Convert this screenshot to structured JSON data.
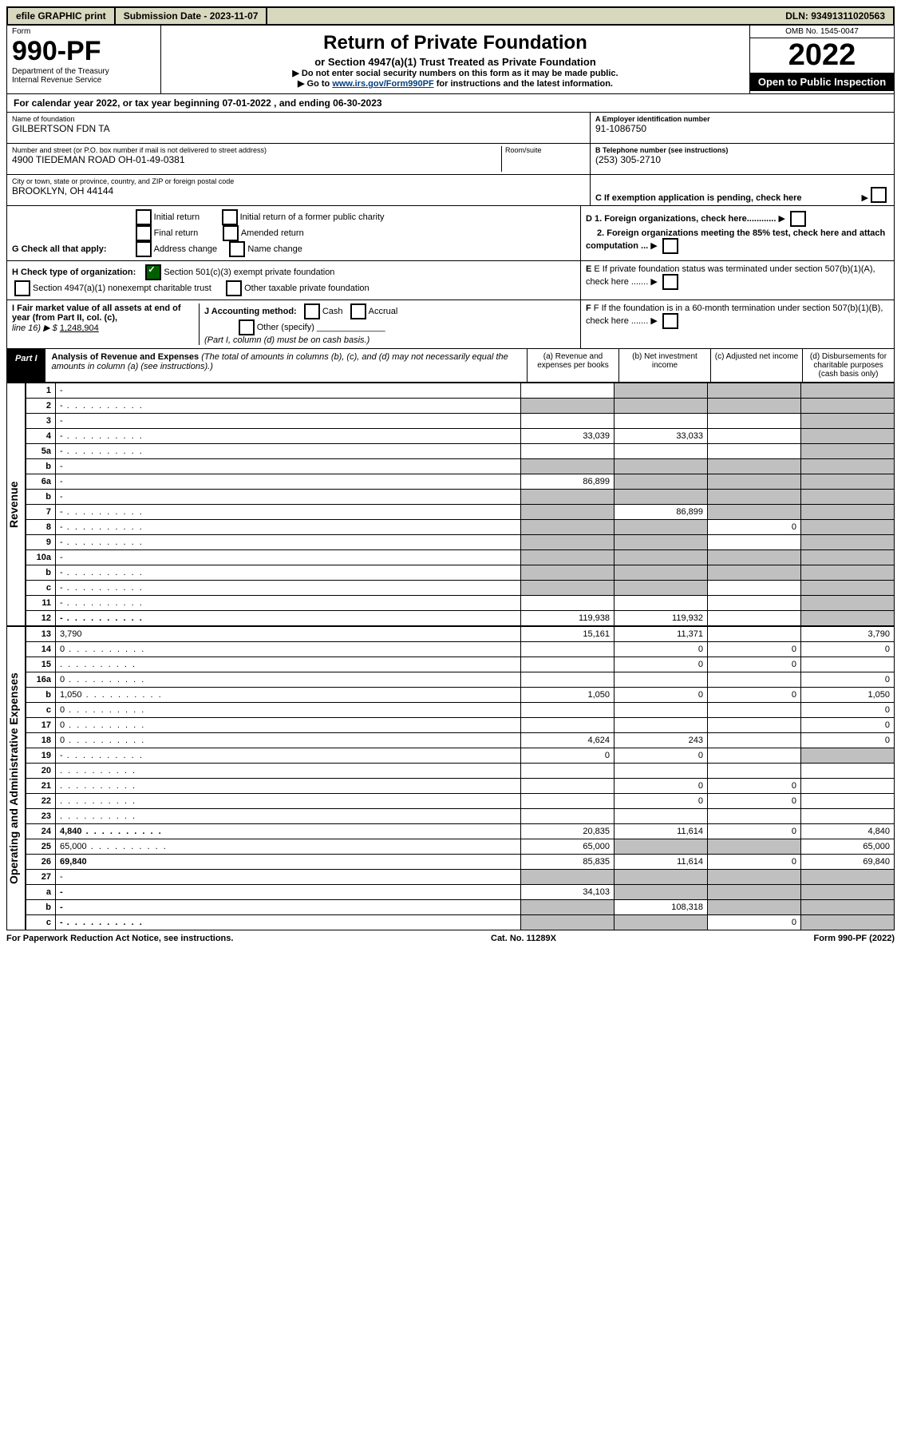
{
  "top": {
    "efile": "efile GRAPHIC print",
    "submission": "Submission Date - 2023-11-07",
    "dln": "DLN: 93491311020563"
  },
  "header": {
    "form_word": "Form",
    "form_no": "990-PF",
    "dept": "Department of the Treasury\nInternal Revenue Service",
    "title": "Return of Private Foundation",
    "subtitle": "or Section 4947(a)(1) Trust Treated as Private Foundation",
    "instruct1": "▶ Do not enter social security numbers on this form as it may be made public.",
    "instruct2_pre": "▶ Go to ",
    "instruct2_link": "www.irs.gov/Form990PF",
    "instruct2_post": " for instructions and the latest information.",
    "omb": "OMB No. 1545-0047",
    "year": "2022",
    "open": "Open to Public Inspection"
  },
  "calyear": "For calendar year 2022, or tax year beginning 07-01-2022         , and ending 06-30-2023",
  "info": {
    "name_label": "Name of foundation",
    "name": "GILBERTSON FDN TA",
    "addr_label": "Number and street (or P.O. box number if mail is not delivered to street address)",
    "addr": "4900 TIEDEMAN ROAD OH-01-49-0381",
    "room_label": "Room/suite",
    "city_label": "City or town, state or province, country, and ZIP or foreign postal code",
    "city": "BROOKLYN, OH  44144",
    "a_label": "A Employer identification number",
    "a_val": "91-1086750",
    "b_label": "B Telephone number (see instructions)",
    "b_val": "(253) 305-2710",
    "c_label": "C If exemption application is pending, check here"
  },
  "g": {
    "prefix": "G Check all that apply:",
    "opts": [
      "Initial return",
      "Final return",
      "Address change",
      "Initial return of a former public charity",
      "Amended return",
      "Name change"
    ],
    "d1": "D 1. Foreign organizations, check here............",
    "d2": "2. Foreign organizations meeting the 85% test, check here and attach computation ..."
  },
  "h": {
    "prefix": "H Check type of organization:",
    "opt1": "Section 501(c)(3) exempt private foundation",
    "opt2": "Section 4947(a)(1) nonexempt charitable trust",
    "opt3": "Other taxable private foundation",
    "e": "E If private foundation status was terminated under section 507(b)(1)(A), check here ......."
  },
  "i": {
    "fmv_label": "I Fair market value of all assets at end of year (from Part II, col. (c),",
    "fmv_line": "line 16) ▶ $",
    "fmv_val": "1,248,904",
    "j": "J Accounting method:",
    "j_cash": "Cash",
    "j_accrual": "Accrual",
    "j_other": "Other (specify)",
    "j_note": "(Part I, column (d) must be on cash basis.)",
    "f": "F If the foundation is in a 60-month termination under section 507(b)(1)(B), check here ......."
  },
  "part1": {
    "tag": "Part I",
    "title": "Analysis of Revenue and Expenses",
    "note": "(The total of amounts in columns (b), (c), and (d) may not necessarily equal the amounts in column (a) (see instructions).)",
    "cols": {
      "a": "(a) Revenue and expenses per books",
      "b": "(b) Net investment income",
      "c": "(c) Adjusted net income",
      "d": "(d) Disbursements for charitable purposes (cash basis only)"
    }
  },
  "side": {
    "rev": "Revenue",
    "exp": "Operating and Administrative Expenses"
  },
  "rows": [
    {
      "n": "1",
      "d": "-",
      "a": "",
      "b": "-",
      "c": "-"
    },
    {
      "n": "2",
      "d": "-",
      "a": "-",
      "b": "-",
      "c": "-",
      "dots": true
    },
    {
      "n": "3",
      "d": "-",
      "a": "",
      "b": "",
      "c": ""
    },
    {
      "n": "4",
      "d": "-",
      "a": "33,039",
      "b": "33,033",
      "c": "",
      "dots": true
    },
    {
      "n": "5a",
      "d": "-",
      "a": "",
      "b": "",
      "c": "",
      "dots": true
    },
    {
      "n": "b",
      "d": "-",
      "a": "-",
      "b": "-",
      "c": "-",
      "inset": true
    },
    {
      "n": "6a",
      "d": "-",
      "a": "86,899",
      "b": "-",
      "c": "-"
    },
    {
      "n": "b",
      "d": "-",
      "a": "-",
      "b": "-",
      "c": "-"
    },
    {
      "n": "7",
      "d": "-",
      "a": "-",
      "b": "86,899",
      "c": "-",
      "dots": true
    },
    {
      "n": "8",
      "d": "-",
      "a": "-",
      "b": "-",
      "c": "0",
      "dots": true
    },
    {
      "n": "9",
      "d": "-",
      "a": "-",
      "b": "-",
      "c": "",
      "dots": true
    },
    {
      "n": "10a",
      "d": "-",
      "a": "-",
      "b": "-",
      "c": "-",
      "inset": true
    },
    {
      "n": "b",
      "d": "-",
      "a": "-",
      "b": "-",
      "c": "-",
      "inset": true,
      "dots": true
    },
    {
      "n": "c",
      "d": "-",
      "a": "-",
      "b": "-",
      "c": "",
      "dots": true
    },
    {
      "n": "11",
      "d": "-",
      "a": "",
      "b": "",
      "c": "",
      "dots": true
    },
    {
      "n": "12",
      "d": "-",
      "a": "119,938",
      "b": "119,932",
      "c": "",
      "bold": true,
      "dots": true
    },
    {
      "n": "13",
      "d": "3,790",
      "a": "15,161",
      "b": "11,371",
      "c": ""
    },
    {
      "n": "14",
      "d": "0",
      "a": "",
      "b": "0",
      "c": "0",
      "dots": true
    },
    {
      "n": "15",
      "d": "",
      "a": "",
      "b": "0",
      "c": "0",
      "dots": true
    },
    {
      "n": "16a",
      "d": "0",
      "a": "",
      "b": "",
      "c": "",
      "dots": true
    },
    {
      "n": "b",
      "d": "1,050",
      "a": "1,050",
      "b": "0",
      "c": "0",
      "dots": true
    },
    {
      "n": "c",
      "d": "0",
      "a": "",
      "b": "",
      "c": "",
      "dots": true
    },
    {
      "n": "17",
      "d": "0",
      "a": "",
      "b": "",
      "c": "",
      "dots": true
    },
    {
      "n": "18",
      "d": "0",
      "a": "4,624",
      "b": "243",
      "c": "",
      "dots": true
    },
    {
      "n": "19",
      "d": "-",
      "a": "0",
      "b": "0",
      "c": "",
      "dots": true
    },
    {
      "n": "20",
      "d": "",
      "a": "",
      "b": "",
      "c": "",
      "dots": true
    },
    {
      "n": "21",
      "d": "",
      "a": "",
      "b": "0",
      "c": "0",
      "dots": true
    },
    {
      "n": "22",
      "d": "",
      "a": "",
      "b": "0",
      "c": "0",
      "dots": true
    },
    {
      "n": "23",
      "d": "",
      "a": "",
      "b": "",
      "c": "",
      "dots": true
    },
    {
      "n": "24",
      "d": "4,840",
      "a": "20,835",
      "b": "11,614",
      "c": "0",
      "bold": true,
      "dots": true
    },
    {
      "n": "25",
      "d": "65,000",
      "a": "65,000",
      "b": "-",
      "c": "-",
      "dots": true
    },
    {
      "n": "26",
      "d": "69,840",
      "a": "85,835",
      "b": "11,614",
      "c": "0",
      "bold": true
    },
    {
      "n": "27",
      "d": "-",
      "a": "-",
      "b": "-",
      "c": "-"
    },
    {
      "n": "a",
      "d": "-",
      "a": "34,103",
      "b": "-",
      "c": "-",
      "bold": true
    },
    {
      "n": "b",
      "d": "-",
      "a": "-",
      "b": "108,318",
      "c": "-",
      "bold": true
    },
    {
      "n": "c",
      "d": "-",
      "a": "-",
      "b": "-",
      "c": "0",
      "bold": true,
      "dots": true
    }
  ],
  "footer": {
    "left": "For Paperwork Reduction Act Notice, see instructions.",
    "mid": "Cat. No. 11289X",
    "right": "Form 990-PF (2022)"
  }
}
